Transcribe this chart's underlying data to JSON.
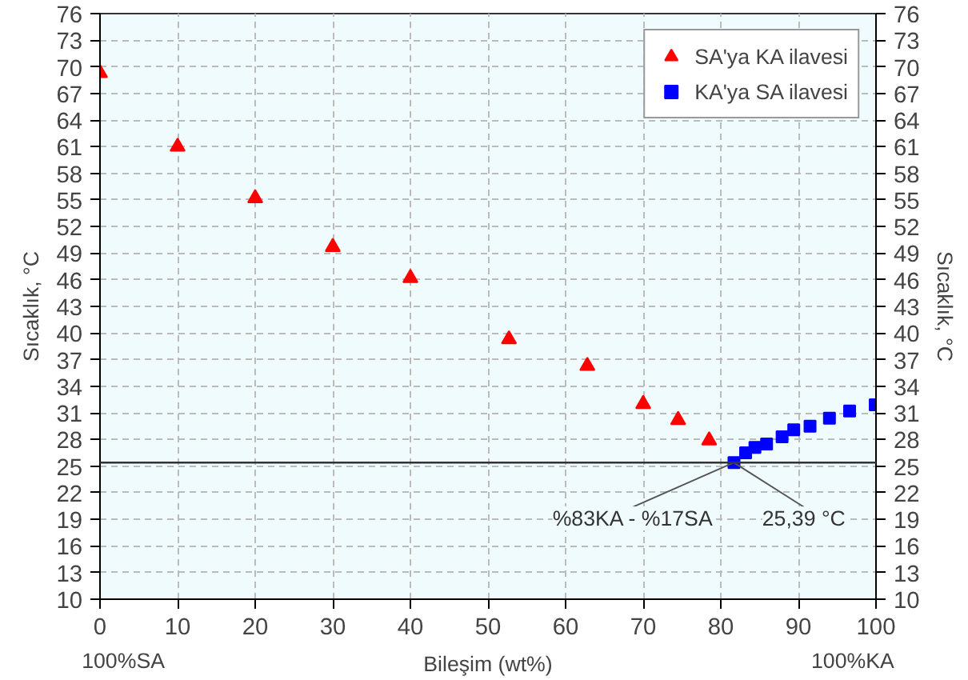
{
  "chart_data": {
    "type": "scatter",
    "xlabel": "Bileşim (wt%)",
    "ylabel": "Sıcaklık, °C",
    "y2label": "Sıcaklık, °C",
    "x": [
      0,
      10,
      20,
      30,
      40,
      52.7,
      62.8,
      70,
      74.5,
      78.5
    ],
    "series": [
      {
        "name": "SA'ya KA ilavesi",
        "color": "#ff0000",
        "marker": "triangle",
        "values": [
          69.3,
          61,
          55.2,
          49.7,
          46.2,
          39.3,
          36.3,
          32,
          30.2,
          27.9
        ]
      },
      {
        "name": "KA'ya SA ilavesi",
        "color": "#0000ff",
        "marker": "square",
        "x": [
          81.7,
          83.2,
          84.4,
          85.9,
          87.9,
          89.4,
          91.5,
          94,
          96.6,
          99.9
        ],
        "values": [
          25.4,
          26.5,
          27.1,
          27.5,
          28.3,
          29.1,
          29.5,
          30.4,
          31.2,
          31.9
        ]
      }
    ],
    "xlim": [
      0,
      100
    ],
    "xticks": [
      0,
      10,
      20,
      30,
      40,
      50,
      60,
      70,
      80,
      90,
      100
    ],
    "ylim": [
      10,
      76
    ],
    "yticks": [
      10,
      13,
      16,
      19,
      22,
      25,
      28,
      31,
      34,
      37,
      40,
      43,
      46,
      49,
      52,
      55,
      58,
      61,
      64,
      67,
      70,
      73,
      76
    ],
    "y2lim": [
      10,
      76
    ],
    "y2ticks": [
      10,
      13,
      16,
      19,
      22,
      25,
      28,
      31,
      34,
      37,
      40,
      43,
      46,
      49,
      52,
      55,
      58,
      61,
      64,
      67,
      70,
      73,
      76
    ],
    "ref_lines": [
      {
        "axis": "y",
        "value": 25.39,
        "color": "#333333"
      }
    ],
    "annotations": [
      {
        "text": "%83KA - %17SA",
        "x": 81.7,
        "y": 25.4
      },
      {
        "text": "25,39 °C",
        "x": 81.7,
        "y": 25.39
      },
      "100%SA",
      "100%KA"
    ],
    "grid": true,
    "legend": "top right"
  }
}
